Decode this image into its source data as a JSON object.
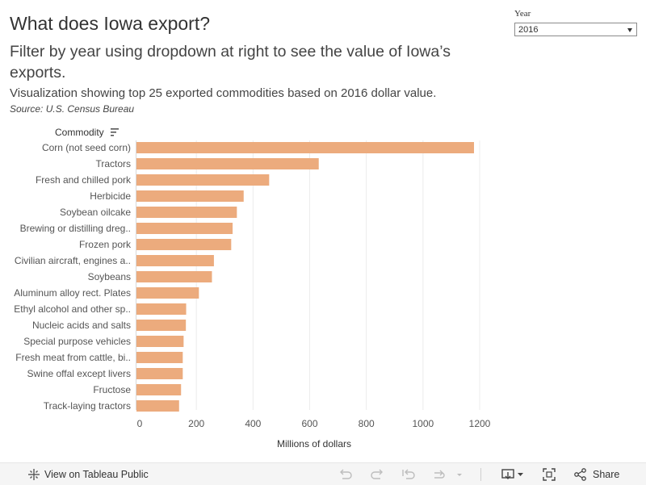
{
  "header": {
    "title": "What does Iowa export?",
    "subtitle": "Filter by year using dropdown at right to see the value of Iowa’s exports.",
    "description": "Visualization showing top 25 exported commodities based on 2016 dollar value.",
    "source": "Source: U.S. Census Bureau"
  },
  "filter": {
    "label": "Year",
    "selected": "2016"
  },
  "chart_data": {
    "type": "bar",
    "orientation": "horizontal",
    "ylabel": "Commodity",
    "xlabel": "Millions of dollars",
    "xlim": [
      0,
      1200
    ],
    "xticks": [
      0,
      200,
      400,
      600,
      800,
      1000,
      1200
    ],
    "grid": true,
    "bar_color": "#ecab7d",
    "categories": [
      "Corn (not seed corn)",
      "Tractors",
      "Fresh and chilled pork",
      "Herbicide",
      "Soybean oilcake",
      "Brewing or distilling dreg..",
      "Frozen pork",
      "Civilian aircraft, engines a..",
      "Soybeans",
      "Aluminum alloy rect. Plates",
      "Ethyl alcohol and other sp..",
      "Nucleic acids and salts",
      "Special purpose vehicles",
      "Fresh meat from cattle, bi..",
      "Swine offal except livers",
      "Fructose",
      "Track-laying tractors"
    ],
    "values": [
      1180,
      632,
      457,
      367,
      343,
      328,
      323,
      262,
      255,
      209,
      164,
      163,
      155,
      152,
      152,
      146,
      139
    ]
  },
  "toolbar": {
    "view_label": "View on Tableau Public",
    "share_label": "Share"
  }
}
